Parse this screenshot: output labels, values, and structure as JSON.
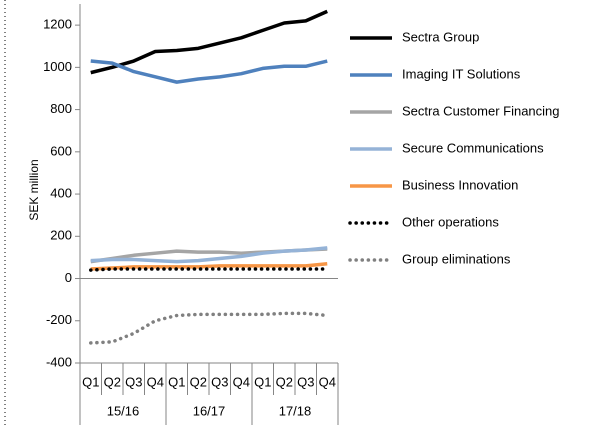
{
  "chart_data": {
    "type": "line",
    "y_label": "SEK million",
    "categories": [
      "Q1",
      "Q2",
      "Q3",
      "Q4",
      "Q1",
      "Q2",
      "Q3",
      "Q4",
      "Q1",
      "Q2",
      "Q3",
      "Q4"
    ],
    "category_groups": [
      "15/16",
      "16/17",
      "17/18"
    ],
    "ylim": [
      -400,
      1300
    ],
    "yticks": [
      -400,
      -200,
      0,
      200,
      400,
      600,
      800,
      1000,
      1200
    ],
    "grid": false,
    "legend": "right",
    "series": [
      {
        "name": "Sectra Group",
        "color": "#000000",
        "style": "solid",
        "values": [
          975,
          1000,
          1030,
          1075,
          1080,
          1090,
          1115,
          1140,
          1175,
          1210,
          1220,
          1265
        ]
      },
      {
        "name": "Imaging IT Solutions",
        "color": "#4f81bd",
        "style": "solid",
        "values": [
          1030,
          1020,
          980,
          955,
          930,
          945,
          955,
          970,
          995,
          1005,
          1005,
          1030
        ]
      },
      {
        "name": "Sectra Customer Financing",
        "color": "#a5a5a5",
        "style": "solid",
        "values": [
          80,
          95,
          110,
          120,
          130,
          125,
          125,
          120,
          125,
          130,
          135,
          140
        ]
      },
      {
        "name": "Secure Communications",
        "color": "#95b3d7",
        "style": "solid",
        "values": [
          85,
          90,
          90,
          85,
          80,
          85,
          95,
          105,
          120,
          130,
          135,
          145
        ]
      },
      {
        "name": "Business Innovation",
        "color": "#f79646",
        "style": "solid",
        "values": [
          45,
          50,
          55,
          55,
          55,
          55,
          60,
          60,
          60,
          60,
          60,
          70
        ]
      },
      {
        "name": "Other operations",
        "color": "#000000",
        "style": "dotted",
        "values": [
          40,
          45,
          45,
          45,
          45,
          45,
          45,
          45,
          45,
          45,
          45,
          45
        ]
      },
      {
        "name": "Group eliminations",
        "color": "#808080",
        "style": "dotted",
        "values": [
          -305,
          -300,
          -260,
          -200,
          -175,
          -170,
          -170,
          -170,
          -170,
          -165,
          -165,
          -175
        ]
      }
    ]
  }
}
